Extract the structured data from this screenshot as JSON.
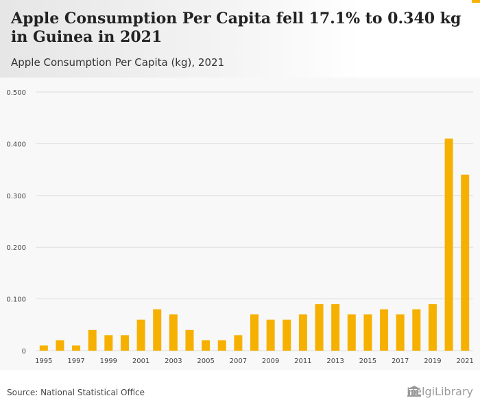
{
  "header": {
    "title": "Apple Consumption Per Capita fell 17.1% to 0.340 kg in Guinea in 2021",
    "subtitle": "Apple Consumption Per Capita (kg), 2021"
  },
  "footer": {
    "source": "Source: National Statistical Office",
    "logo_text": "HelgiLibrary"
  },
  "colors": {
    "bar": "#f6b000",
    "grid": "#dddddd",
    "axis_text": "#444444"
  },
  "chart_data": {
    "type": "bar",
    "title": "Apple Consumption Per Capita (kg), 2021",
    "xlabel": "",
    "ylabel": "",
    "ylim": [
      0,
      0.5
    ],
    "yticks": [
      "0",
      "0.100",
      "0.200",
      "0.300",
      "0.400",
      "0.500"
    ],
    "categories": [
      "1995",
      "1996",
      "1997",
      "1998",
      "1999",
      "2000",
      "2001",
      "2002",
      "2003",
      "2004",
      "2005",
      "2006",
      "2007",
      "2008",
      "2009",
      "2010",
      "2011",
      "2012",
      "2013",
      "2014",
      "2015",
      "2016",
      "2017",
      "2018",
      "2019",
      "2020",
      "2021"
    ],
    "values": [
      0.01,
      0.02,
      0.01,
      0.04,
      0.03,
      0.03,
      0.06,
      0.08,
      0.07,
      0.04,
      0.02,
      0.02,
      0.03,
      0.07,
      0.06,
      0.06,
      0.07,
      0.09,
      0.09,
      0.07,
      0.07,
      0.08,
      0.07,
      0.08,
      0.09,
      0.41,
      0.34
    ],
    "xtick_labels": [
      "1995",
      "1997",
      "1999",
      "2001",
      "2003",
      "2005",
      "2007",
      "2009",
      "2011",
      "2013",
      "2015",
      "2017",
      "2019",
      "2021"
    ],
    "grid": true
  }
}
